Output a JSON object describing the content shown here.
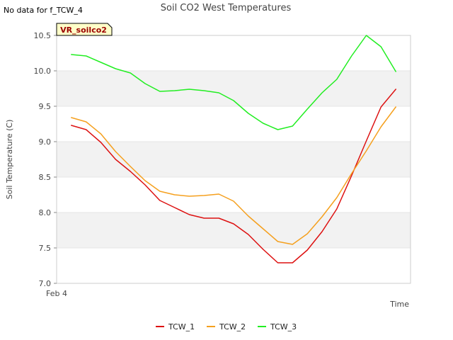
{
  "no_data_note": "No data for f_TCW_4",
  "site_tag": "VR_soilco2",
  "chart_data": {
    "type": "line",
    "title": "Soil CO2 West Temperatures",
    "xlabel": "Time",
    "ylabel": "Soil Temperature (C)",
    "ylim": [
      7.0,
      10.5
    ],
    "yticks": [
      "7.0",
      "7.5",
      "8.0",
      "8.5",
      "9.0",
      "9.5",
      "10.0",
      "10.5"
    ],
    "xtick_labels": [
      "Feb 4"
    ],
    "x": [
      0,
      1,
      2,
      3,
      4,
      5,
      6,
      7,
      8,
      9,
      10,
      11,
      12,
      13,
      14,
      15,
      16,
      17,
      18,
      19,
      20,
      21,
      22,
      23
    ],
    "series": [
      {
        "name": "TCW_1",
        "color": "#dd1111",
        "values": [
          9.23,
          9.17,
          8.99,
          8.75,
          8.58,
          8.39,
          8.17,
          8.07,
          7.97,
          7.92,
          7.92,
          7.84,
          7.69,
          7.48,
          7.29,
          7.29,
          7.47,
          7.73,
          8.05,
          8.52,
          9.01,
          9.49,
          9.74,
          null
        ]
      },
      {
        "name": "TCW_2",
        "color": "#f5a01e",
        "values": [
          9.34,
          9.28,
          9.11,
          8.86,
          8.65,
          8.45,
          8.3,
          8.25,
          8.23,
          8.24,
          8.26,
          8.16,
          7.95,
          7.77,
          7.59,
          7.55,
          7.7,
          7.94,
          8.21,
          8.55,
          8.87,
          9.21,
          9.49,
          null
        ]
      },
      {
        "name": "TCW_3",
        "color": "#22ee22",
        "values": [
          10.23,
          10.21,
          10.12,
          10.03,
          9.97,
          9.82,
          9.71,
          9.72,
          9.74,
          9.72,
          9.69,
          9.58,
          9.4,
          9.26,
          9.17,
          9.22,
          9.46,
          9.69,
          9.88,
          10.21,
          10.5,
          10.34,
          9.99,
          null
        ]
      }
    ],
    "grid": true,
    "legend_position": "bottom"
  }
}
